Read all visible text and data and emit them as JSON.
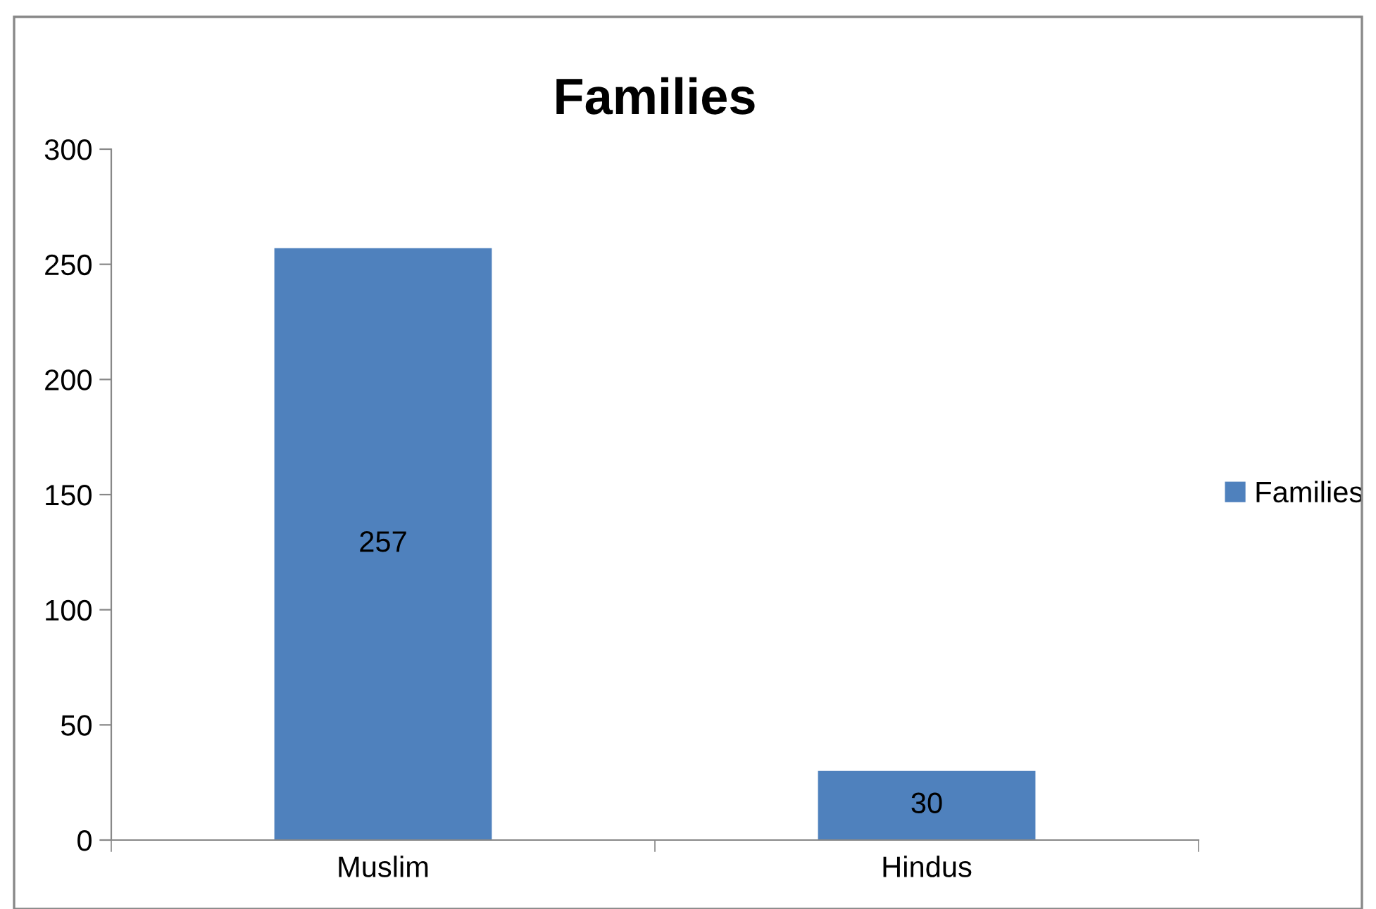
{
  "chart_data": {
    "type": "bar",
    "title": "Families",
    "categories": [
      "Muslim",
      "Hindus"
    ],
    "series": [
      {
        "name": "Families",
        "color": "#4f81bd",
        "values": [
          257,
          30
        ]
      }
    ],
    "ylim": [
      0,
      300
    ],
    "yticks": [
      0,
      50,
      100,
      150,
      200,
      250,
      300
    ],
    "grid": false,
    "legend": "right",
    "data_labels": true
  }
}
